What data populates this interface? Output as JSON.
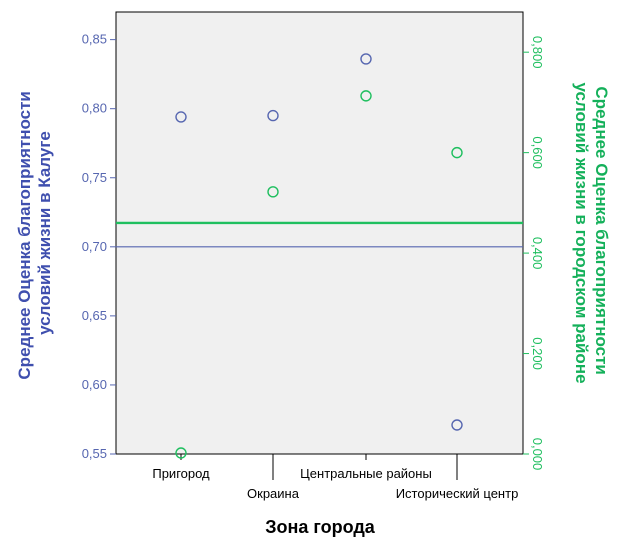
{
  "chart_data": {
    "type": "scatter",
    "categories": [
      "Пригород",
      "Окраина",
      "Центральные районы",
      "Исторический центр"
    ],
    "xlabel": "Зона города",
    "y_left": {
      "label_lines": [
        "Среднее Оценка благоприятности",
        "условий жизни в Калуге"
      ],
      "ylim": [
        0.55,
        0.87
      ],
      "ticks": [
        0.55,
        0.6,
        0.65,
        0.7,
        0.75,
        0.8,
        0.85
      ],
      "tick_labels": [
        "0,55",
        "0,60",
        "0,65",
        "0,70",
        "0,75",
        "0,80",
        "0,85"
      ],
      "color": "#5666b0",
      "reference_line": 0.7
    },
    "y_right": {
      "label_lines": [
        "Среднее Оценка благоприятности",
        "условий жизни в городском районе"
      ],
      "ylim": [
        0.0,
        0.88
      ],
      "ticks": [
        0.0,
        0.2,
        0.4,
        0.6,
        0.8
      ],
      "tick_labels": [
        "0,000",
        "0,200",
        "0,400",
        "0,600",
        "0,800"
      ],
      "color": "#1fbf5f",
      "reference_line": 0.46
    },
    "series": [
      {
        "axis": "left",
        "values": [
          0.794,
          0.795,
          0.836,
          0.571
        ]
      },
      {
        "axis": "right",
        "values": [
          0.002,
          0.522,
          0.713,
          0.6
        ]
      }
    ],
    "grid": false,
    "legend": "none"
  }
}
